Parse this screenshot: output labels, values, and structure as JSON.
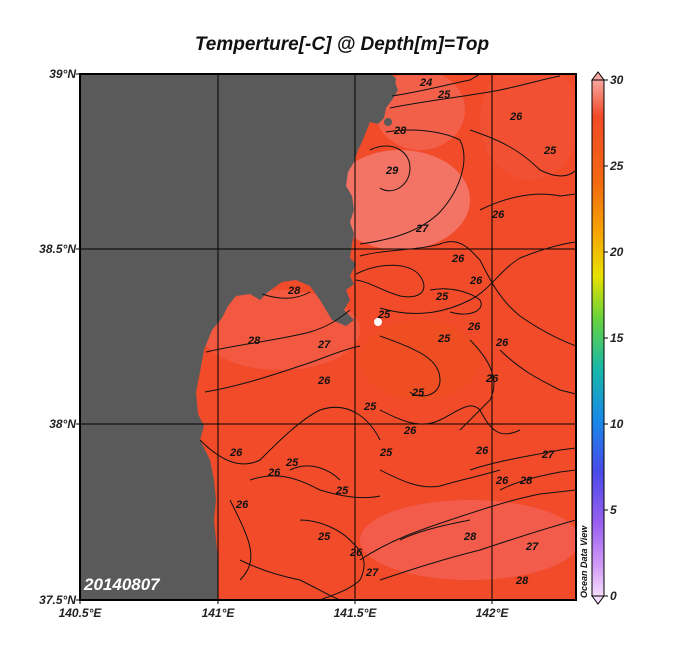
{
  "title": "Temperture[-C] @ Depth[m]=Top",
  "date_stamp": "20140807",
  "watermark": "Ocean Data View",
  "axes": {
    "lat_labels": [
      "39°N",
      "38.5°N",
      "38°N",
      "37.5°N"
    ],
    "lon_labels": [
      "140.5°E",
      "141°E",
      "141.5°E",
      "142°E"
    ]
  },
  "colorbar": {
    "ticks": [
      "30",
      "25",
      "20",
      "15",
      "10",
      "5",
      "0"
    ],
    "range": [
      0,
      30
    ]
  },
  "contour_labels": [
    "24",
    "25",
    "26",
    "25",
    "28",
    "29",
    "27",
    "26",
    "26",
    "28",
    "27",
    "25",
    "25",
    "26",
    "26",
    "28",
    "26",
    "25",
    "25",
    "26",
    "26",
    "25",
    "25",
    "26",
    "26",
    "27",
    "26",
    "26",
    "25",
    "25",
    "26",
    "28",
    "28",
    "26",
    "27",
    "28",
    "27",
    "26",
    "25"
  ],
  "colors": {
    "land": "#5a5a5a",
    "sea_warm": "#f04a28",
    "sea_hot": "#f26a62",
    "border": "#000000"
  }
}
